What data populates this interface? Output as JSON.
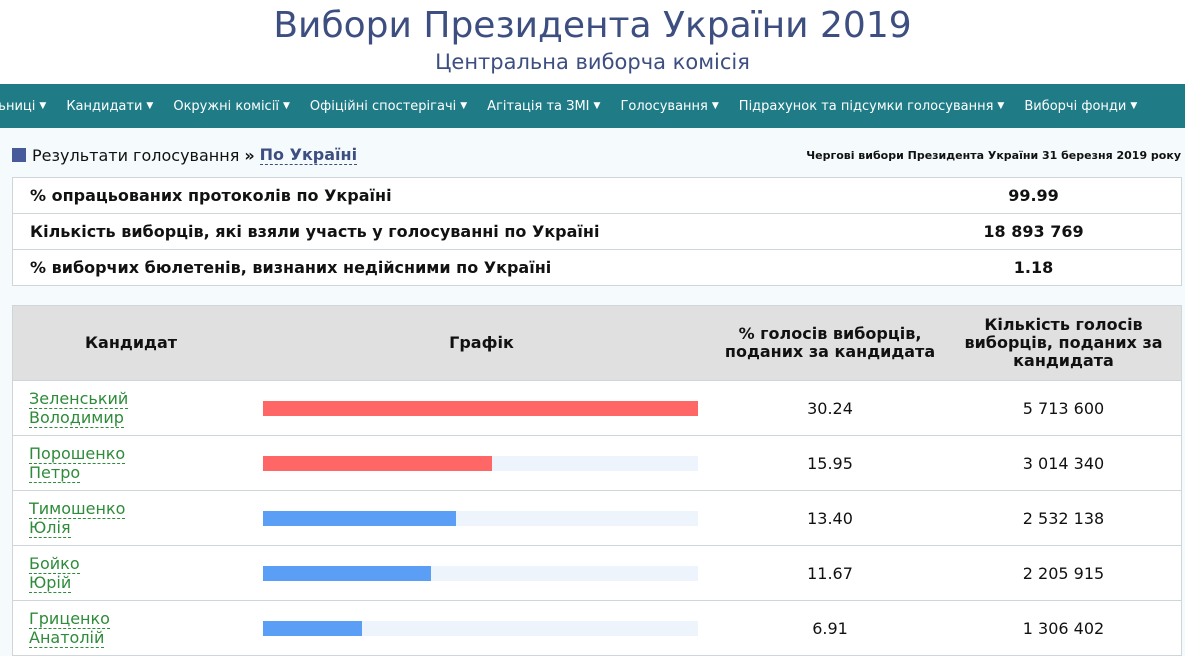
{
  "header": {
    "title": "Вибори Президента України 2019",
    "subtitle": "Центральна виборча комісія"
  },
  "nav": {
    "items": [
      "льниці",
      "Кандидати",
      "Окружні комісії",
      "Офіційні спостерігачі",
      "Агітація та ЗМІ",
      "Голосування",
      "Підрахунок та підсумки голосування",
      "Виборчі фонди"
    ]
  },
  "breadcrumb": {
    "root": "Результати голосування",
    "separator": "»",
    "current": "По Україні"
  },
  "election_label": "Чергові вибори Президента України 31 березня 2019 року",
  "summary": [
    {
      "label": "% опрацьованих протоколів по Україні",
      "value": "99.99"
    },
    {
      "label": "Кількість виборців, які взяли участь у голосуванні по Україні",
      "value": "18 893 769"
    },
    {
      "label": "% виборчих бюлетенів, визнаних недійсними по Україні",
      "value": "1.18"
    }
  ],
  "results": {
    "headers": {
      "candidate": "Кандидат",
      "graph": "Графік",
      "percent": "% голосів виборців, поданих за кандидата",
      "votes": "Кількість голосів виборців, поданих за кандидата"
    },
    "colors": {
      "top": "#ff6666",
      "other": "#5a9ef5",
      "track": "#eef4fc",
      "link": "#2e8b3a"
    },
    "rows": [
      {
        "surname": "Зеленський",
        "name": "Володимир",
        "percent": "30.24",
        "votes": "5 713 600",
        "highlight": true
      },
      {
        "surname": "Порошенко",
        "name": "Петро",
        "percent": "15.95",
        "votes": "3 014 340",
        "highlight": true
      },
      {
        "surname": "Тимошенко",
        "name": "Юлія",
        "percent": "13.40",
        "votes": "2 532 138",
        "highlight": false
      },
      {
        "surname": "Бойко",
        "name": "Юрій",
        "percent": "11.67",
        "votes": "2 205 915",
        "highlight": false
      },
      {
        "surname": "Гриценко",
        "name": "Анатолій",
        "percent": "6.91",
        "votes": "1 306 402",
        "highlight": false
      }
    ]
  }
}
